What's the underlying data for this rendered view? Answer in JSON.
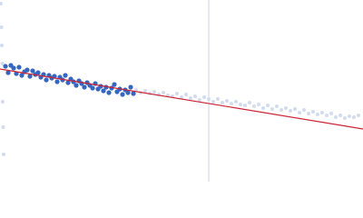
{
  "chart_data": {
    "type": "scatter",
    "xlim": [
      0,
      400
    ],
    "ylim": [
      0,
      200
    ],
    "series": [
      {
        "color": "#d2dcee",
        "radius": 2,
        "x": [
          1,
          1.5,
          2,
          2.5,
          3,
          3.5,
          4,
          150,
          155,
          160,
          165,
          170,
          175,
          180,
          185,
          190,
          195,
          200,
          205,
          210,
          215,
          220,
          225,
          230,
          235,
          240,
          245,
          250,
          255,
          260,
          265,
          270,
          275,
          280,
          285,
          290,
          295,
          300,
          305,
          310,
          315,
          320,
          325,
          330,
          335,
          340,
          345,
          350,
          355,
          360,
          365,
          370,
          375,
          380,
          385,
          390,
          395
        ],
        "values": [
          196,
          170,
          150,
          130,
          88,
          60,
          30,
          101,
          98,
          100,
          97,
          99,
          96,
          98,
          95,
          94,
          97,
          93,
          96,
          92,
          94,
          90,
          93,
          91,
          88,
          91,
          87,
          89,
          86,
          88,
          85,
          84,
          87,
          83,
          85,
          81,
          84,
          80,
          83,
          79,
          81,
          78,
          80,
          76,
          79,
          75,
          77,
          74,
          76,
          73,
          75,
          71,
          73,
          70,
          72,
          71,
          73
        ]
      },
      {
        "color": "#3566c0",
        "radius": 2.6,
        "x": [
          6,
          9,
          12,
          15,
          18,
          21,
          24,
          27,
          30,
          33,
          36,
          39,
          42,
          45,
          48,
          51,
          54,
          57,
          60,
          63,
          66,
          69,
          72,
          75,
          78,
          81,
          84,
          87,
          90,
          93,
          96,
          99,
          102,
          105,
          108,
          111,
          114,
          117,
          120,
          123,
          126,
          129,
          132,
          135,
          138,
          141,
          144,
          147
        ],
        "values": [
          127,
          120,
          128,
          125,
          119,
          126,
          117,
          121,
          123,
          116,
          122,
          118,
          120,
          115,
          118,
          112,
          117,
          114,
          116,
          110,
          115,
          112,
          117,
          109,
          113,
          110,
          106,
          111,
          108,
          104,
          109,
          106,
          103,
          108,
          102,
          105,
          100,
          104,
          98,
          103,
          107,
          99,
          102,
          96,
          101,
          98,
          104,
          97
        ]
      }
    ],
    "fit": {
      "color": "#cc2233",
      "x": [
        0,
        400
      ],
      "values": [
        124,
        58
      ]
    },
    "vline": {
      "color": "#c8d4ea",
      "value": 230
    }
  }
}
